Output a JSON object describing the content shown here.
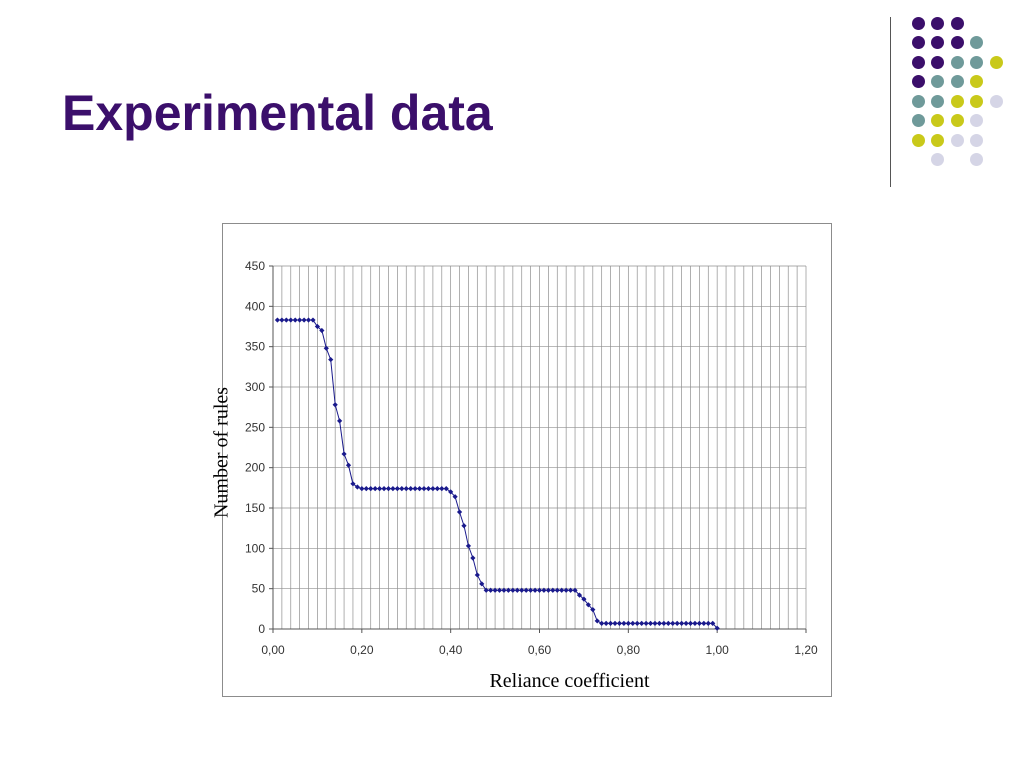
{
  "slide": {
    "title": "Experimental data"
  },
  "decor": {
    "colors": {
      "purple": "#3b0f6b",
      "teal": "#6f9a9a",
      "yellow": "#c9c91a",
      "lavender": "#d5d5e6"
    },
    "dot_grid": [
      [
        "purple",
        "purple",
        "purple",
        null
      ],
      [
        "purple",
        "purple",
        "purple",
        "teal"
      ],
      [
        "purple",
        "purple",
        "teal",
        "teal",
        "yellow"
      ],
      [
        "purple",
        "teal",
        "teal",
        "yellow"
      ],
      [
        "teal",
        "teal",
        "yellow",
        "yellow",
        "lavender"
      ],
      [
        "teal",
        "yellow",
        "yellow",
        "lavender"
      ],
      [
        "yellow",
        "yellow",
        "lavender",
        "lavender"
      ],
      [
        null,
        "lavender",
        null,
        "lavender"
      ]
    ]
  },
  "chart_data": {
    "type": "line",
    "xlabel": "Reliance coefficient",
    "ylabel": "Number of rules",
    "xlim": [
      0,
      1.2
    ],
    "ylim": [
      0,
      450
    ],
    "xticks": [
      "0,00",
      "0,20",
      "0,40",
      "0,60",
      "0,80",
      "1,00",
      "1,20"
    ],
    "yticks": [
      "0",
      "50",
      "100",
      "150",
      "200",
      "250",
      "300",
      "350",
      "400",
      "450"
    ],
    "grid": true,
    "marker": "diamond",
    "line_color": "#1a1a8c",
    "series": [
      {
        "x": [
          0.01,
          0.02,
          0.03,
          0.04,
          0.05,
          0.06,
          0.07,
          0.08,
          0.09,
          0.1,
          0.11,
          0.12,
          0.13,
          0.14,
          0.15,
          0.16,
          0.17,
          0.18,
          0.19,
          0.2,
          0.21,
          0.22,
          0.23,
          0.24,
          0.25,
          0.26,
          0.27,
          0.28,
          0.29,
          0.3,
          0.31,
          0.32,
          0.33,
          0.34,
          0.35,
          0.36,
          0.37,
          0.38,
          0.39,
          0.4,
          0.41,
          0.42,
          0.43,
          0.44,
          0.45,
          0.46,
          0.47,
          0.48,
          0.49,
          0.5,
          0.51,
          0.52,
          0.53,
          0.54,
          0.55,
          0.56,
          0.57,
          0.58,
          0.59,
          0.6,
          0.61,
          0.62,
          0.63,
          0.64,
          0.65,
          0.66,
          0.67,
          0.68,
          0.69,
          0.7,
          0.71,
          0.72,
          0.73,
          0.74,
          0.75,
          0.76,
          0.77,
          0.78,
          0.79,
          0.8,
          0.81,
          0.82,
          0.83,
          0.84,
          0.85,
          0.86,
          0.87,
          0.88,
          0.89,
          0.9,
          0.91,
          0.92,
          0.93,
          0.94,
          0.95,
          0.96,
          0.97,
          0.98,
          0.99,
          1.0
        ],
        "values": [
          383,
          383,
          383,
          383,
          383,
          383,
          383,
          383,
          383,
          375,
          370,
          348,
          334,
          278,
          258,
          217,
          203,
          180,
          176,
          174,
          174,
          174,
          174,
          174,
          174,
          174,
          174,
          174,
          174,
          174,
          174,
          174,
          174,
          174,
          174,
          174,
          174,
          174,
          174,
          170,
          164,
          145,
          128,
          103,
          88,
          67,
          56,
          48,
          48,
          48,
          48,
          48,
          48,
          48,
          48,
          48,
          48,
          48,
          48,
          48,
          48,
          48,
          48,
          48,
          48,
          48,
          48,
          48,
          42,
          37,
          30,
          24,
          10,
          7,
          7,
          7,
          7,
          7,
          7,
          7,
          7,
          7,
          7,
          7,
          7,
          7,
          7,
          7,
          7,
          7,
          7,
          7,
          7,
          7,
          7,
          7,
          7,
          7,
          7,
          1
        ]
      }
    ]
  }
}
